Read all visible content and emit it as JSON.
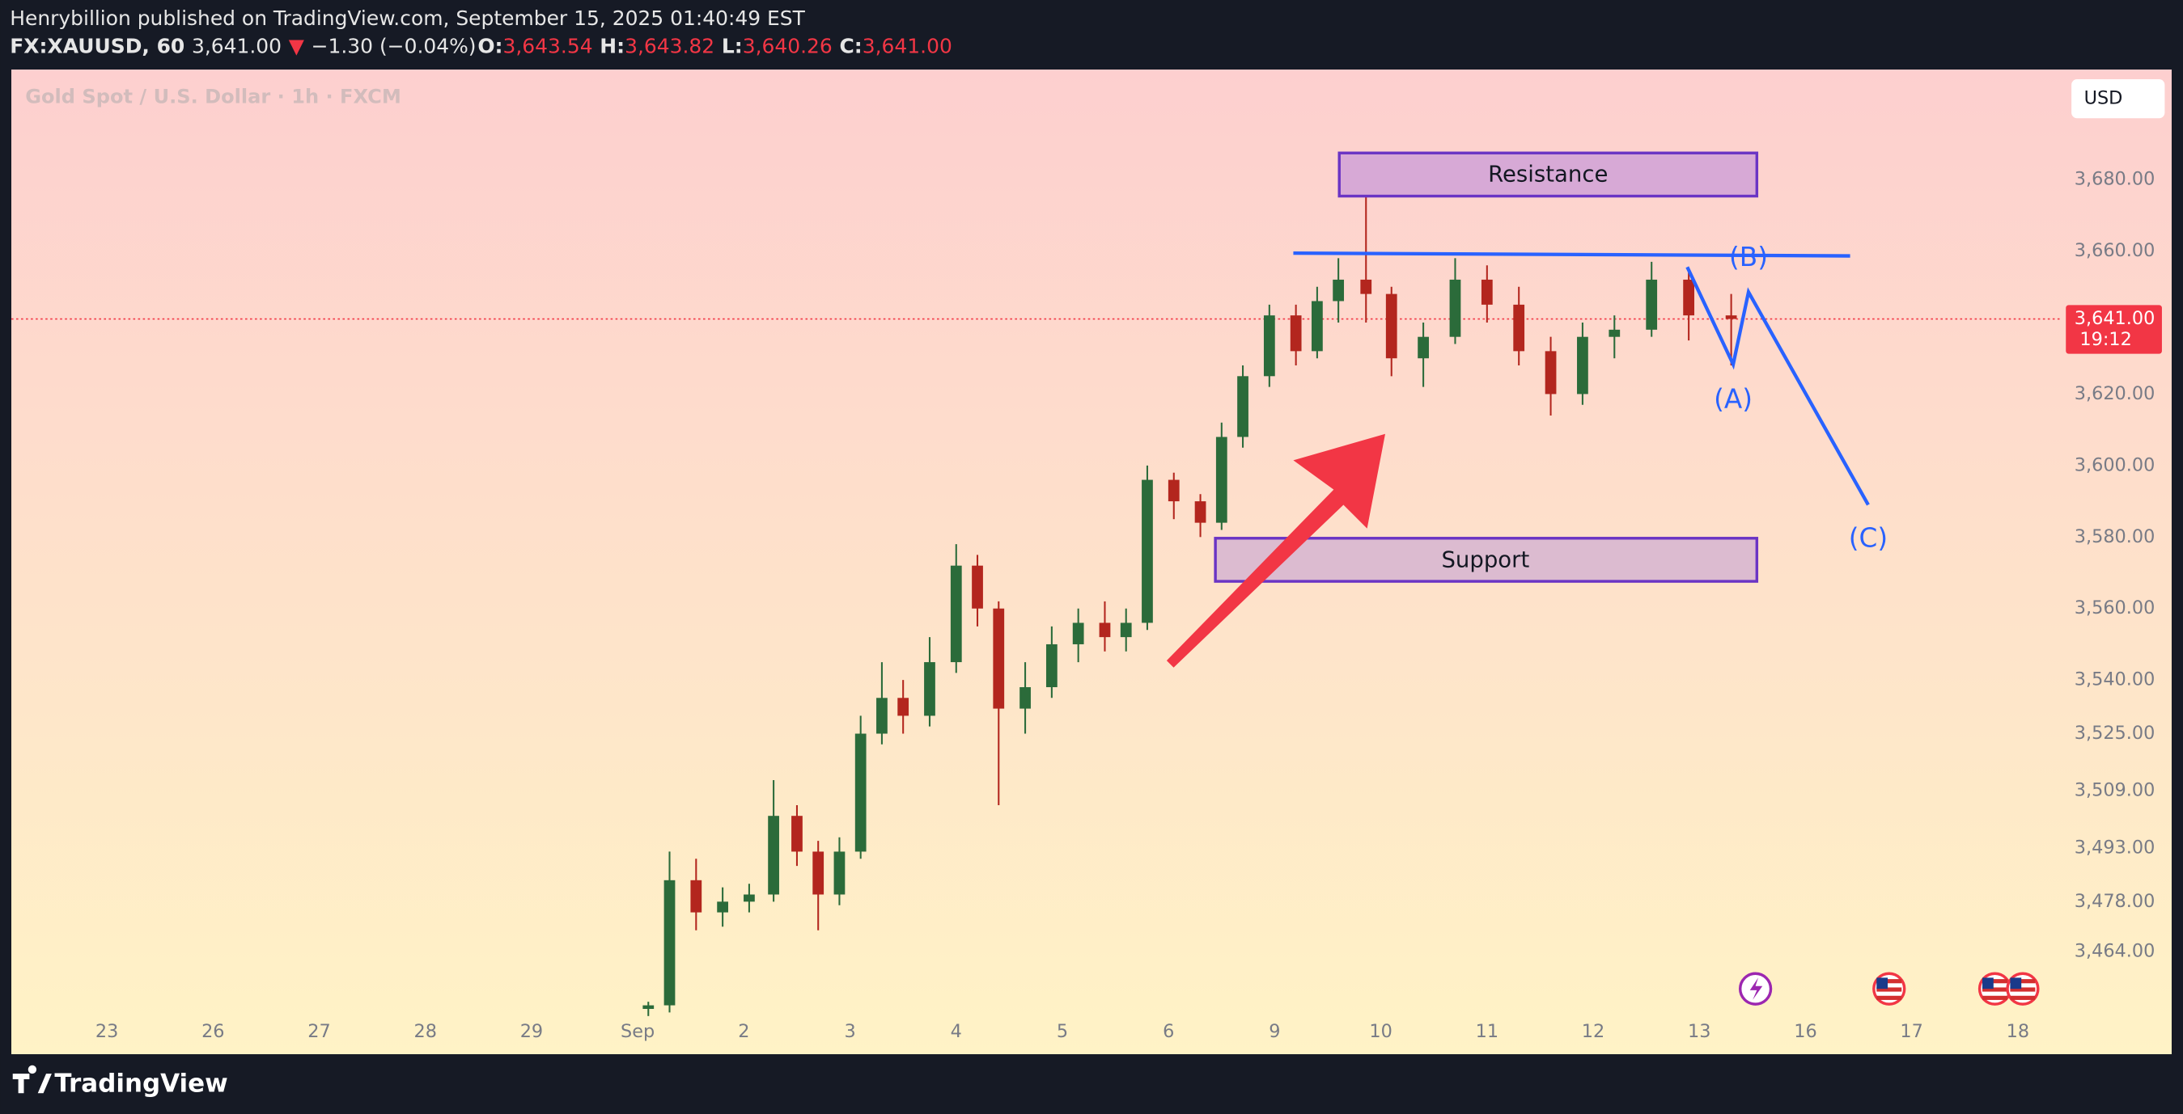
{
  "header": {
    "published": "Henrybillion published on TradingView.com, September 15, 2025 01:40:49 EST",
    "symbol": "FX:XAUUSD, 60",
    "last": "3,641.00",
    "arrow": "▼",
    "change": "−1.30 (−0.04%)",
    "open_label": "O:",
    "open": "3,643.54",
    "high_label": "H:",
    "high": "3,643.82",
    "low_label": "L:",
    "low": "3,640.26",
    "close_label": "C:",
    "close": "3,641.00"
  },
  "currency_button": "USD",
  "footer": {
    "logo": "TradingView"
  },
  "chart_data": {
    "type": "candlestick",
    "title": "Gold Spot / U.S. Dollar · 1h · FXCM",
    "up_color": "#2b6b3a",
    "down_color": "#b3261e",
    "xlim": [
      -0.9,
      18.4
    ],
    "xticks": [
      {
        "value": 0,
        "label": "23"
      },
      {
        "value": 1,
        "label": "26"
      },
      {
        "value": 2,
        "label": "27"
      },
      {
        "value": 3,
        "label": "28"
      },
      {
        "value": 4,
        "label": "29"
      },
      {
        "value": 5,
        "label": "Sep"
      },
      {
        "value": 6,
        "label": "2"
      },
      {
        "value": 7,
        "label": "3"
      },
      {
        "value": 8,
        "label": "4"
      },
      {
        "value": 9,
        "label": "5"
      },
      {
        "value": 10,
        "label": "6"
      },
      {
        "value": 11,
        "label": "9"
      },
      {
        "value": 12,
        "label": "10"
      },
      {
        "value": 13,
        "label": "11"
      },
      {
        "value": 14,
        "label": "12"
      },
      {
        "value": 15,
        "label": "13"
      },
      {
        "value": 16,
        "label": "16"
      },
      {
        "value": 17,
        "label": "17"
      },
      {
        "value": 18,
        "label": "18"
      }
    ],
    "ylim": [
      3447,
      3710
    ],
    "yticks": [
      {
        "value": 3680,
        "label": "3,680.00"
      },
      {
        "value": 3660,
        "label": "3,660.00"
      },
      {
        "value": 3620,
        "label": "3,620.00"
      },
      {
        "value": 3600,
        "label": "3,600.00"
      },
      {
        "value": 3580,
        "label": "3,580.00"
      },
      {
        "value": 3560,
        "label": "3,560.00"
      },
      {
        "value": 3540,
        "label": "3,540.00"
      },
      {
        "value": 3525,
        "label": "3,525.00"
      },
      {
        "value": 3509,
        "label": "3,509.00"
      },
      {
        "value": 3493,
        "label": "3,493.00"
      },
      {
        "value": 3478,
        "label": "3,478.00"
      },
      {
        "value": 3464,
        "label": "3,464.00"
      }
    ],
    "current_price": {
      "value": 3641,
      "label": "3,641.00"
    },
    "countdown": "19:12",
    "x": [
      5.1,
      5.3,
      5.55,
      5.8,
      6.05,
      6.28,
      6.5,
      6.7,
      6.9,
      7.1,
      7.3,
      7.5,
      7.75,
      8.0,
      8.2,
      8.4,
      8.65,
      8.9,
      9.15,
      9.4,
      9.6,
      9.8,
      10.05,
      10.3,
      10.5,
      10.7,
      10.95,
      11.2,
      11.4,
      11.6,
      11.86,
      12.1,
      12.4,
      12.7,
      13.0,
      13.3,
      13.6,
      13.9,
      14.2,
      14.55,
      14.9,
      15.3
    ],
    "open": [
      3448,
      3449,
      3484,
      3475,
      3478,
      3480,
      3502,
      3492,
      3480,
      3492,
      3525,
      3535,
      3530,
      3545,
      3572,
      3560,
      3532,
      3538,
      3550,
      3556,
      3552,
      3556,
      3596,
      3590,
      3584,
      3608,
      3625,
      3642,
      3632,
      3646,
      3652,
      3648,
      3630,
      3636,
      3652,
      3645,
      3632,
      3620,
      3636,
      3638,
      3652,
      3642
    ],
    "high": [
      3450,
      3492,
      3490,
      3482,
      3483,
      3512,
      3505,
      3495,
      3496,
      3530,
      3545,
      3540,
      3552,
      3578,
      3575,
      3562,
      3545,
      3555,
      3560,
      3562,
      3560,
      3600,
      3598,
      3592,
      3612,
      3628,
      3645,
      3645,
      3650,
      3658,
      3676,
      3650,
      3640,
      3658,
      3656,
      3650,
      3636,
      3640,
      3642,
      3657,
      3655,
      3648
    ],
    "low": [
      3446,
      3447,
      3470,
      3471,
      3475,
      3478,
      3488,
      3470,
      3477,
      3490,
      3522,
      3525,
      3527,
      3542,
      3555,
      3505,
      3525,
      3535,
      3545,
      3548,
      3548,
      3554,
      3585,
      3580,
      3582,
      3605,
      3622,
      3628,
      3630,
      3640,
      3640,
      3625,
      3622,
      3634,
      3640,
      3628,
      3614,
      3617,
      3630,
      3636,
      3635,
      3628
    ],
    "close": [
      3449,
      3484,
      3475,
      3478,
      3480,
      3502,
      3492,
      3480,
      3492,
      3525,
      3535,
      3530,
      3545,
      3572,
      3560,
      3532,
      3538,
      3550,
      3556,
      3552,
      3556,
      3596,
      3590,
      3584,
      3608,
      3625,
      3642,
      3632,
      3646,
      3652,
      3648,
      3630,
      3636,
      3652,
      3645,
      3632,
      3620,
      3636,
      3638,
      3652,
      3642,
      3641
    ],
    "annotations": {
      "resistance": "Resistance",
      "support": "Support",
      "wave_a": "(A)",
      "wave_b": "(B)",
      "wave_c": "(C)"
    }
  }
}
